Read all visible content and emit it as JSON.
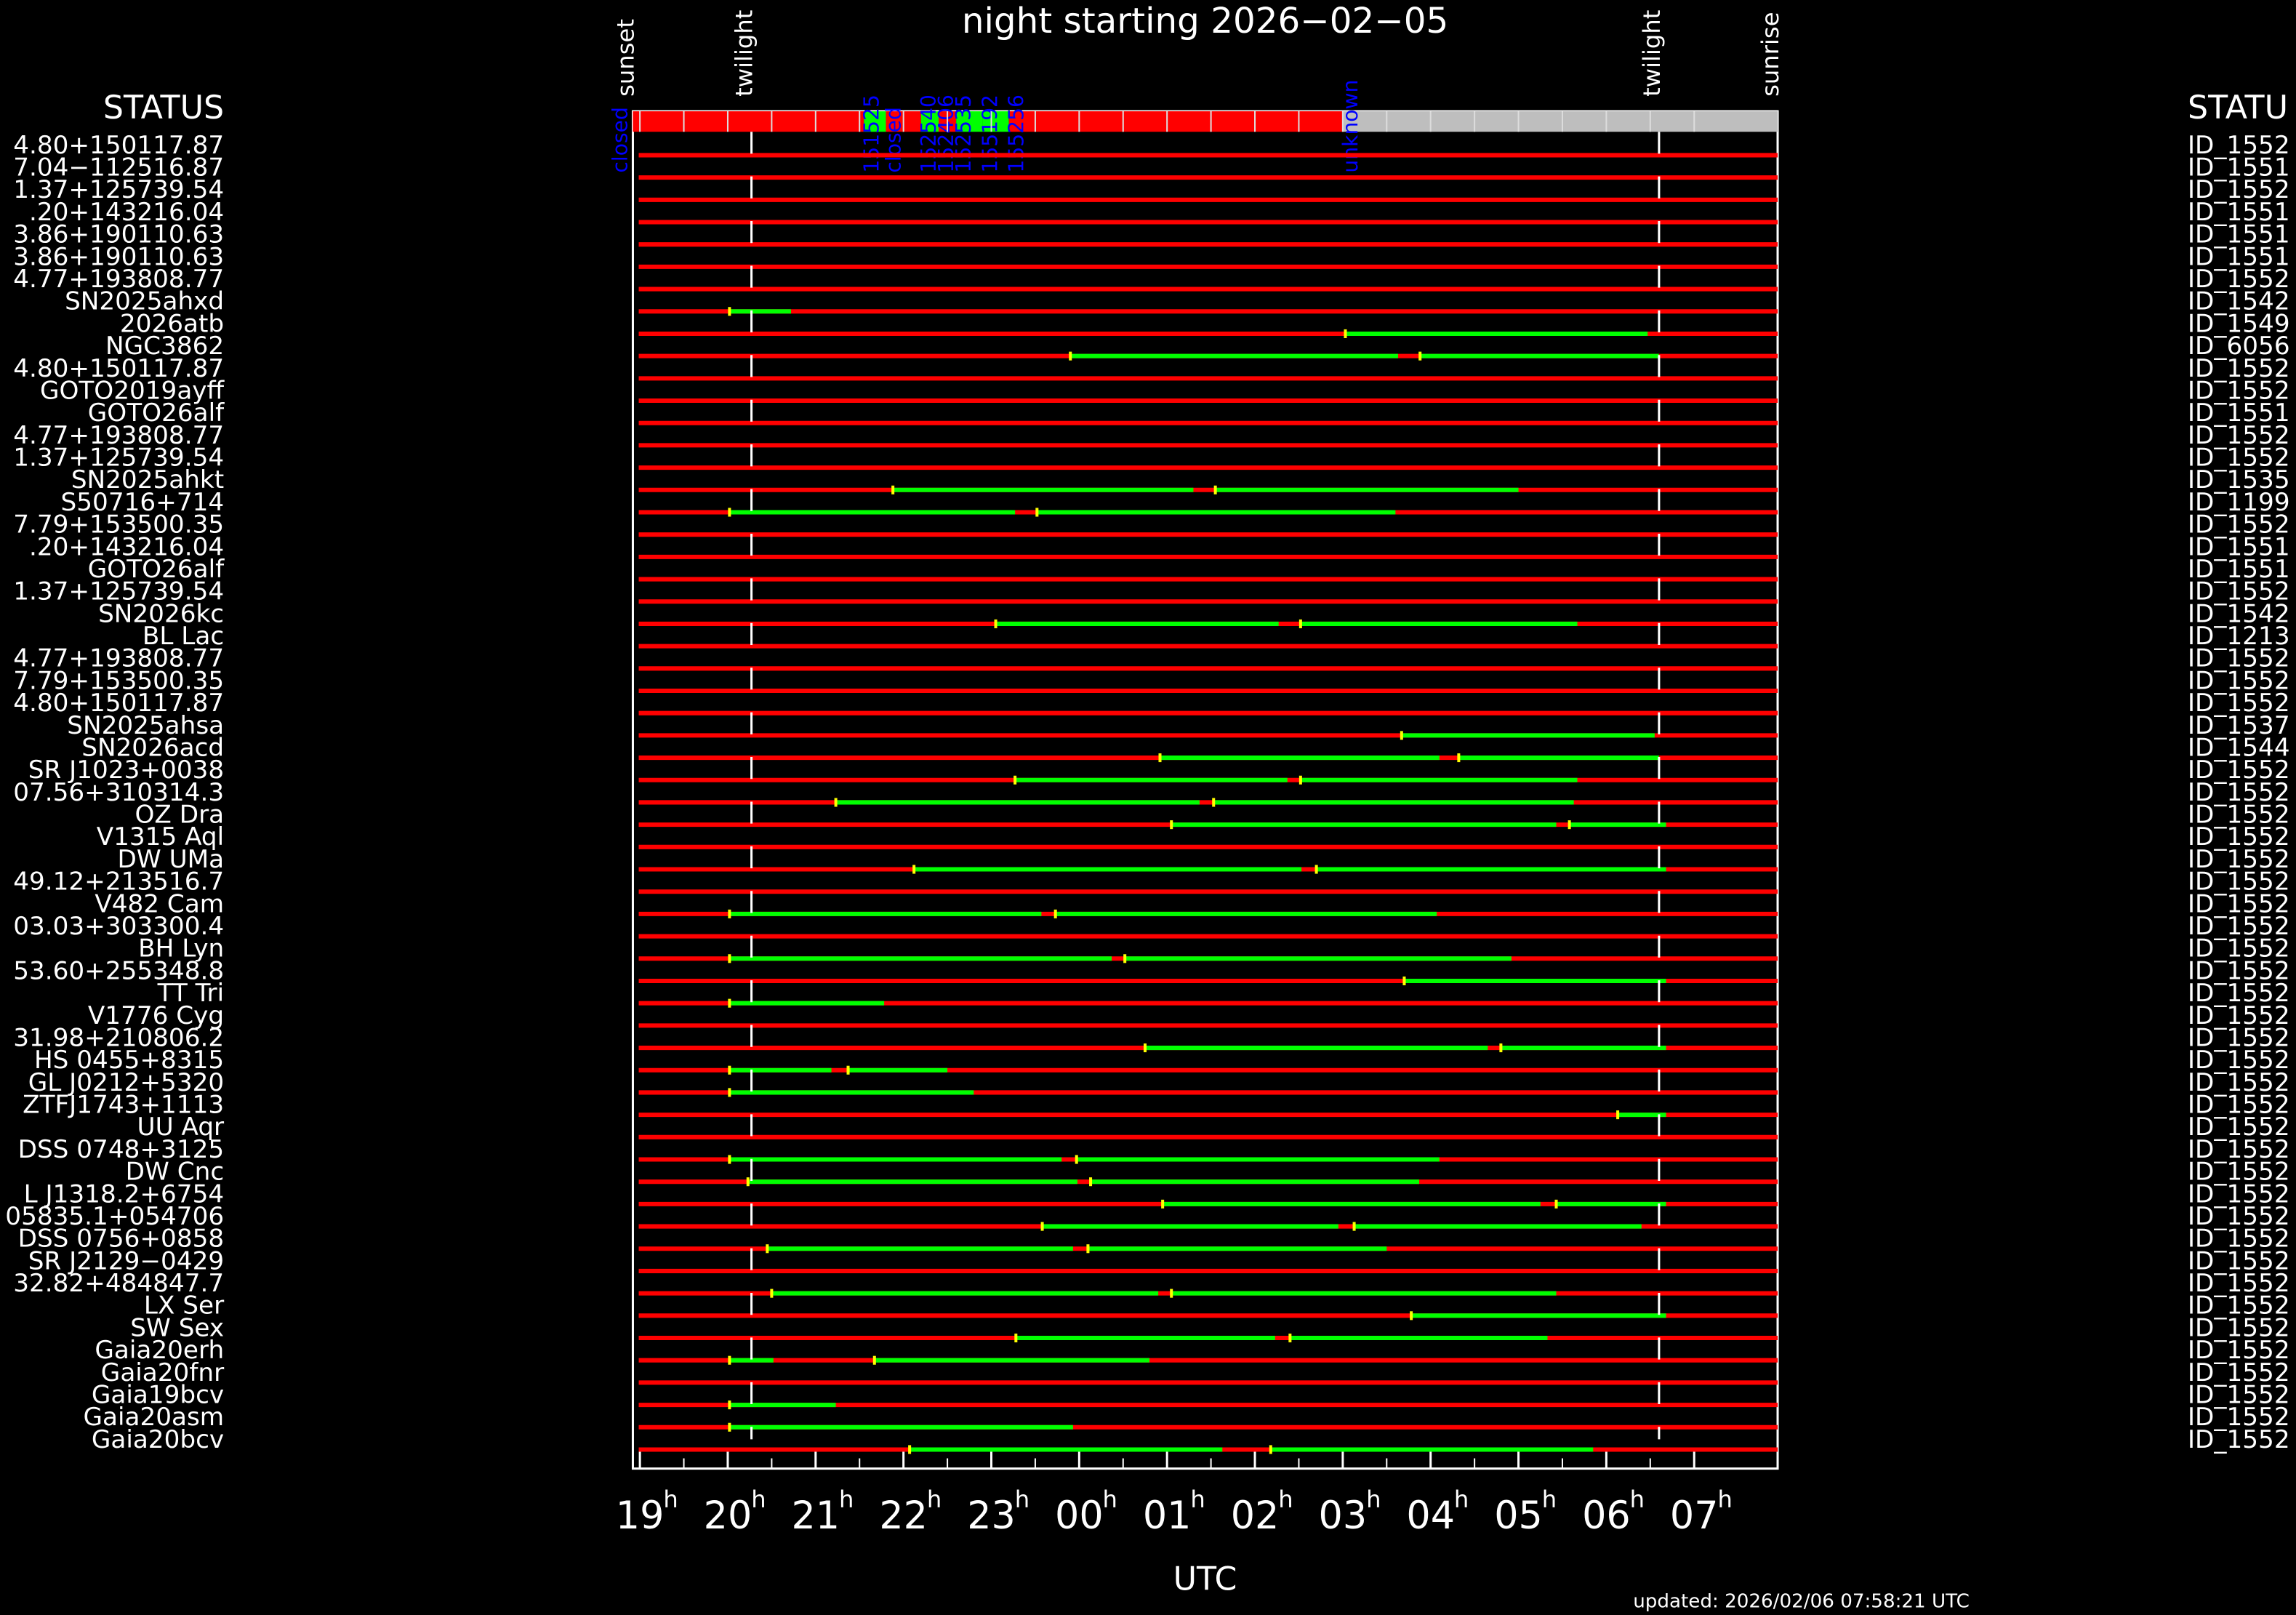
{
  "title": "night starting 2026−02−05",
  "axis": {
    "label": "UTC",
    "hour_suffix": "h",
    "ticks": [
      19,
      20,
      21,
      22,
      23,
      {
        "value": 24,
        "label": "00"
      },
      {
        "value": 25,
        "label": "01"
      },
      {
        "value": 26,
        "label": "02"
      },
      {
        "value": 27,
        "label": "03"
      },
      {
        "value": 28,
        "label": "04"
      },
      {
        "value": 29,
        "label": "05"
      },
      {
        "value": 30,
        "label": "06"
      },
      {
        "value": 31,
        "label": "07"
      }
    ],
    "range": [
      18.92,
      31.95
    ]
  },
  "events": [
    {
      "label": "sunset",
      "time": 18.92
    },
    {
      "label": "twilight",
      "time": 20.27
    },
    {
      "label": "twilight",
      "time": 30.6
    },
    {
      "label": "sunrise",
      "time": 31.95
    }
  ],
  "status_header_left": "STATUS",
  "status_header_right": "STATU",
  "status": [
    {
      "start": 18.92,
      "end": 21.55,
      "color": "#ff0000",
      "label": "closed"
    },
    {
      "start": 21.55,
      "end": 21.8,
      "color": "#00ff00",
      "label": "151525"
    },
    {
      "start": 21.8,
      "end": 22.2,
      "color": "#ff0000",
      "label": "closed"
    },
    {
      "start": 22.2,
      "end": 22.4,
      "color": "#00ff00",
      "label": "152540"
    },
    {
      "start": 22.4,
      "end": 22.6,
      "color": "#ff0000",
      "label": "152406"
    },
    {
      "start": 22.6,
      "end": 22.9,
      "color": "#00ff00",
      "label": "152535"
    },
    {
      "start": 22.9,
      "end": 23.2,
      "color": "#00ff00",
      "label": "155192"
    },
    {
      "start": 23.2,
      "end": 27.0,
      "color": "#ff0000",
      "label": "155256"
    },
    {
      "start": 27.0,
      "end": 31.95,
      "color": "#bebebe",
      "label": "unknown"
    }
  ],
  "rows": [
    {
      "target": "4.80+150117.87",
      "id": "ID_1552",
      "observable": []
    },
    {
      "target": "7.04−112516.87",
      "id": "ID_1551",
      "observable": []
    },
    {
      "target": "1.37+125739.54",
      "id": "ID_1552",
      "observable": []
    },
    {
      "target": ".20+143216.04",
      "id": "ID_1551",
      "observable": []
    },
    {
      "target": "3.86+190110.63",
      "id": "ID_1551",
      "observable": []
    },
    {
      "target": "3.86+190110.63",
      "id": "ID_1551",
      "observable": []
    },
    {
      "target": "4.77+193808.77",
      "id": "ID_1552",
      "observable": []
    },
    {
      "target": "SN2025ahxd",
      "id": "ID_1542",
      "observable": [
        [
          20.02,
          20.72
        ]
      ]
    },
    {
      "target": "2026atb",
      "id": "ID_1549",
      "observable": [
        [
          27.03,
          30.47
        ]
      ]
    },
    {
      "target": "NGC3862",
      "id": "ID_6056",
      "observable": [
        [
          23.9,
          27.63
        ],
        [
          27.88,
          30.6
        ]
      ]
    },
    {
      "target": "4.80+150117.87",
      "id": "ID_1552",
      "observable": []
    },
    {
      "target": "GOTO2019ayff",
      "id": "ID_1552",
      "observable": []
    },
    {
      "target": "GOTO26alf",
      "id": "ID_1551",
      "observable": []
    },
    {
      "target": "4.77+193808.77",
      "id": "ID_1552",
      "observable": []
    },
    {
      "target": "1.37+125739.54",
      "id": "ID_1552",
      "observable": []
    },
    {
      "target": "SN2025ahkt",
      "id": "ID_1535",
      "observable": [
        [
          21.88,
          25.3
        ],
        [
          25.55,
          29.0
        ]
      ]
    },
    {
      "target": "S50716+714",
      "id": "ID_1199",
      "observable": [
        [
          20.02,
          23.27
        ],
        [
          23.52,
          27.6
        ]
      ]
    },
    {
      "target": "7.79+153500.35",
      "id": "ID_1552",
      "observable": []
    },
    {
      "target": ".20+143216.04",
      "id": "ID_1551",
      "observable": []
    },
    {
      "target": "GOTO26alf",
      "id": "ID_1551",
      "observable": []
    },
    {
      "target": "1.37+125739.54",
      "id": "ID_1552",
      "observable": []
    },
    {
      "target": "SN2026kc",
      "id": "ID_1542",
      "observable": [
        [
          23.05,
          26.27
        ],
        [
          26.52,
          29.67
        ]
      ]
    },
    {
      "target": "BL Lac",
      "id": "ID_1213",
      "observable": []
    },
    {
      "target": "4.77+193808.77",
      "id": "ID_1552",
      "observable": []
    },
    {
      "target": "7.79+153500.35",
      "id": "ID_1552",
      "observable": []
    },
    {
      "target": "4.80+150117.87",
      "id": "ID_1552",
      "observable": []
    },
    {
      "target": "SN2025ahsa",
      "id": "ID_1537",
      "observable": [
        [
          27.67,
          30.55
        ]
      ]
    },
    {
      "target": "SN2026acd",
      "id": "ID_1544",
      "observable": [
        [
          24.92,
          28.1
        ],
        [
          28.32,
          30.6
        ]
      ]
    },
    {
      "target": "SR J1023+0038",
      "id": "ID_1552",
      "observable": [
        [
          23.27,
          26.37
        ],
        [
          26.52,
          29.67
        ]
      ]
    },
    {
      "target": "07.56+310314.3",
      "id": "ID_1552",
      "observable": [
        [
          21.23,
          25.37
        ],
        [
          25.53,
          29.63
        ]
      ]
    },
    {
      "target": "OZ Dra",
      "id": "ID_1552",
      "observable": [
        [
          25.05,
          29.43
        ],
        [
          29.58,
          30.68
        ]
      ]
    },
    {
      "target": "V1315 Aql",
      "id": "ID_1552",
      "observable": []
    },
    {
      "target": "DW UMa",
      "id": "ID_1552",
      "observable": [
        [
          22.12,
          26.53
        ],
        [
          26.7,
          30.68
        ]
      ]
    },
    {
      "target": "49.12+213516.7",
      "id": "ID_1552",
      "observable": []
    },
    {
      "target": "V482 Cam",
      "id": "ID_1552",
      "observable": [
        [
          20.02,
          23.57
        ],
        [
          23.73,
          28.07
        ]
      ]
    },
    {
      "target": "03.03+303300.4",
      "id": "ID_1552",
      "observable": []
    },
    {
      "target": "BH Lyn",
      "id": "ID_1552",
      "observable": [
        [
          20.02,
          24.37
        ],
        [
          24.52,
          28.92
        ]
      ]
    },
    {
      "target": "53.60+255348.8",
      "id": "ID_1552",
      "observable": [
        [
          27.7,
          30.68
        ]
      ]
    },
    {
      "target": "TT Tri",
      "id": "ID_1552",
      "observable": [
        [
          20.02,
          21.78
        ]
      ]
    },
    {
      "target": "V1776 Cyg",
      "id": "ID_1552",
      "observable": []
    },
    {
      "target": "31.98+210806.2",
      "id": "ID_1552",
      "observable": [
        [
          24.75,
          28.65
        ],
        [
          28.8,
          30.68
        ]
      ]
    },
    {
      "target": "HS 0455+8315",
      "id": "ID_1552",
      "observable": [
        [
          20.02,
          21.18
        ],
        [
          21.37,
          22.5
        ]
      ]
    },
    {
      "target": "GL J0212+5320",
      "id": "ID_1552",
      "observable": [
        [
          20.02,
          22.8
        ]
      ]
    },
    {
      "target": "ZTFJ1743+1113",
      "id": "ID_1552",
      "observable": [
        [
          30.13,
          30.68
        ]
      ]
    },
    {
      "target": "UU Aqr",
      "id": "ID_1552",
      "observable": []
    },
    {
      "target": "DSS 0748+3125",
      "id": "ID_1552",
      "observable": [
        [
          20.02,
          23.8
        ],
        [
          23.97,
          28.1
        ]
      ]
    },
    {
      "target": "DW Cnc",
      "id": "ID_1552",
      "observable": [
        [
          20.23,
          23.98
        ],
        [
          24.13,
          27.87
        ]
      ]
    },
    {
      "target": "L J1318.2+6754",
      "id": "ID_1552",
      "observable": [
        [
          24.95,
          29.25
        ],
        [
          29.43,
          30.68
        ]
      ]
    },
    {
      "target": "05835.1+054706",
      "id": "ID_1552",
      "observable": [
        [
          23.58,
          26.95
        ],
        [
          27.13,
          30.4
        ]
      ]
    },
    {
      "target": "DSS 0756+0858",
      "id": "ID_1552",
      "observable": [
        [
          20.45,
          23.93
        ],
        [
          24.1,
          27.5
        ]
      ]
    },
    {
      "target": "SR J2129−0429",
      "id": "ID_1552",
      "observable": []
    },
    {
      "target": "32.82+484847.7",
      "id": "ID_1552",
      "observable": [
        [
          20.5,
          24.9
        ],
        [
          25.05,
          29.43
        ]
      ]
    },
    {
      "target": "LX Ser",
      "id": "ID_1552",
      "observable": [
        [
          27.78,
          30.68
        ]
      ]
    },
    {
      "target": "SW Sex",
      "id": "ID_1552",
      "observable": [
        [
          23.28,
          26.23
        ],
        [
          26.4,
          29.33
        ]
      ]
    },
    {
      "target": "Gaia20erh",
      "id": "ID_1552",
      "observable": [
        [
          20.02,
          20.52
        ],
        [
          21.67,
          24.8
        ]
      ]
    },
    {
      "target": "Gaia20fnr",
      "id": "ID_1552",
      "observable": []
    },
    {
      "target": "Gaia19bcv",
      "id": "ID_1552",
      "observable": [
        [
          20.02,
          21.23
        ]
      ]
    },
    {
      "target": "Gaia20asm",
      "id": "ID_1552",
      "observable": [
        [
          20.02,
          23.93
        ]
      ]
    },
    {
      "target": "Gaia20bcv",
      "id": "ID_1552",
      "observable": [
        [
          22.07,
          25.63
        ],
        [
          26.18,
          29.85
        ]
      ]
    }
  ],
  "footer": "updated: 2026/02/06 07:58:21 UTC"
}
